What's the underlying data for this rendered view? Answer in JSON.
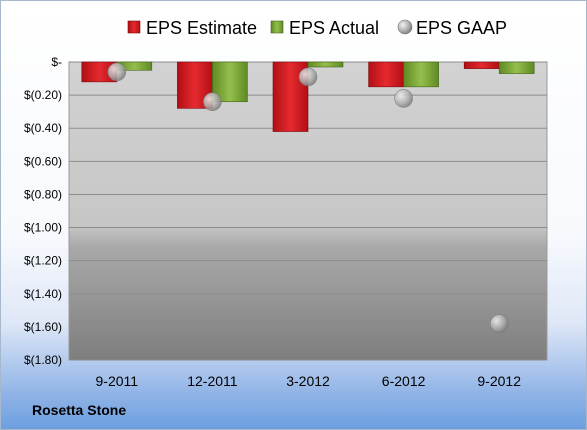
{
  "chart_data": {
    "type": "bar",
    "categories": [
      "9-2011",
      "12-2011",
      "3-2012",
      "6-2012",
      "9-2012"
    ],
    "series": [
      {
        "name": "EPS Estimate",
        "kind": "bar",
        "color": "#d9181f",
        "values": [
          -0.12,
          -0.28,
          -0.42,
          -0.15,
          -0.04
        ]
      },
      {
        "name": "EPS Actual",
        "kind": "bar",
        "color": "#7da33a",
        "values": [
          -0.05,
          -0.24,
          -0.03,
          -0.15,
          -0.07
        ]
      },
      {
        "name": "EPS GAAP",
        "kind": "marker",
        "color": "#b8b8b8",
        "values": [
          -0.06,
          -0.24,
          -0.09,
          -0.22,
          -1.58
        ]
      }
    ],
    "yticks": [
      "$-",
      "$(0.20)",
      "$(0.40)",
      "$(0.60)",
      "$(0.80)",
      "$(1.00)",
      "$(1.20)",
      "$(1.40)",
      "$(1.60)",
      "$(1.80)"
    ],
    "ylim": [
      -1.8,
      0
    ],
    "grid": true,
    "legend_position": "top"
  },
  "footer": {
    "company": "Rosetta Stone"
  }
}
